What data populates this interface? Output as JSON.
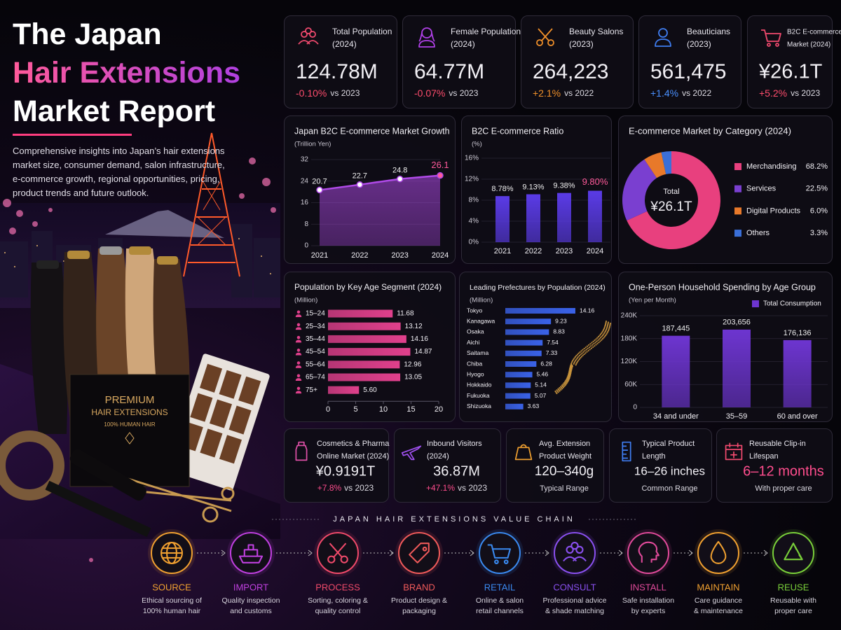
{
  "header": {
    "title_lines": [
      "The Japan",
      "Hair Extensions",
      "Market Report"
    ],
    "description": "Comprehensive insights into Japan’s hair extensions market size, consumer demand, salon infrastructure, e-commerce growth, regional opportunities, pricing, product trends and future outlook."
  },
  "illustration": {
    "box_lines": [
      "PREMIUM",
      "HAIR EXTENSIONS",
      "100% HUMAN HAIR"
    ]
  },
  "kpis": [
    {
      "label": [
        "Total Population",
        "(2024)"
      ],
      "value": "124.78M",
      "change": "-0.10%",
      "compare": "vs 2023"
    },
    {
      "label": [
        "Female Population",
        "(2024)"
      ],
      "value": "64.77M",
      "change": "-0.07%",
      "compare": "vs 2023"
    },
    {
      "label": [
        "Beauty Salons",
        "(2023)"
      ],
      "value": "264,223",
      "change": "+2.1%",
      "compare": "vs 2022"
    },
    {
      "label": [
        "Beauticians",
        "(2023)"
      ],
      "value": "561,475",
      "change": "+1.4%",
      "compare": "vs 2022"
    },
    {
      "label": [
        "B2C E-commerce",
        "Market (2024)"
      ],
      "value": "¥26.1T",
      "change": "+5.2%",
      "compare": "vs 2023"
    }
  ],
  "chart_data": [
    {
      "type": "line",
      "title": "Japan B2C E-commerce Market Growth",
      "subtitle": "(Trillion Yen)",
      "categories": [
        "2021",
        "2022",
        "2023",
        "2024"
      ],
      "values": [
        20.7,
        22.7,
        24.8,
        26.1
      ],
      "color": "#b04ae8",
      "ylim": [
        0,
        32
      ],
      "yticks": [
        0,
        8,
        16,
        24,
        32
      ]
    },
    {
      "type": "bar",
      "title": "B2C E-commerce Ratio",
      "subtitle": "(%)",
      "categories": [
        "2021",
        "2022",
        "2023",
        "2024"
      ],
      "values": [
        8.78,
        9.13,
        9.38,
        9.8
      ],
      "value_labels": [
        "8.78%",
        "9.13%",
        "9.38%",
        "9.80%"
      ],
      "color": "#5a3be6",
      "ylim": [
        0,
        16
      ],
      "yticks": [
        {
          "value": 0,
          "label": "0%"
        },
        {
          "value": 4,
          "label": "4%"
        },
        {
          "value": 8,
          "label": "8%"
        },
        {
          "value": 12,
          "label": "12%"
        },
        {
          "value": 16,
          "label": "16%"
        }
      ]
    },
    {
      "type": "donut",
      "title": "E-commerce Market by Category (2024)",
      "center_label": "Total",
      "center_value": "¥26.1T",
      "categories": [
        "Merchandising",
        "Services",
        "Digital Products",
        "Others"
      ],
      "values": [
        68.2,
        22.5,
        6,
        3.3
      ],
      "value_labels": [
        "68.2%",
        "22.5%",
        "6.0%",
        "3.3%"
      ],
      "colors": [
        "#e8407e",
        "#7a3fd0",
        "#e8792a",
        "#3a6fd8"
      ]
    },
    {
      "type": "hbar",
      "title": "Population by Key Age Segment (2024)",
      "subtitle": "(Million)",
      "categories": [
        "15–24",
        "25–34",
        "35–44",
        "45–54",
        "55–64",
        "65–74",
        "75+"
      ],
      "values": [
        11.68,
        13.12,
        14.16,
        14.87,
        12.96,
        13.05,
        5.6
      ],
      "value_labels": [
        "11.68",
        "13.12",
        "14.16",
        "14.87",
        "12.96",
        "13.05",
        "5.60"
      ],
      "color": "#e0408c",
      "xlim": [
        0,
        20
      ],
      "xticks": [
        0,
        5,
        10,
        15,
        20
      ]
    },
    {
      "type": "hbar",
      "title": "Leading Prefectures by Population (2024)",
      "subtitle": "(Million)",
      "categories": [
        "Tokyo",
        "Kanagawa",
        "Osaka",
        "Aichi",
        "Saitama",
        "Chiba",
        "Hyogo",
        "Hokkaido",
        "Fukuoka",
        "Shizuoka"
      ],
      "values": [
        14.16,
        9.23,
        8.83,
        7.54,
        7.33,
        6.28,
        5.46,
        5.14,
        5.07,
        3.63
      ],
      "color": "#3a62e8"
    },
    {
      "type": "bar",
      "title": "One-Person Household Spending by Age Group",
      "subtitle": "(Yen per Month)",
      "categories": [
        "34 and under",
        "35–59",
        "60 and over"
      ],
      "series": [
        {
          "name": "Total Consumption",
          "color": "#6d35d0",
          "values": [
            187445,
            203656,
            176136
          ],
          "value_labels": [
            "187,445",
            "203,656",
            "176,136"
          ]
        }
      ],
      "ylim": [
        0,
        240000
      ],
      "yticks": [
        0,
        {
          "value": 60000,
          "label": "60K"
        },
        {
          "value": 120000,
          "label": "120K"
        },
        {
          "value": 180000,
          "label": "180K"
        },
        {
          "value": 240000,
          "label": "240K"
        }
      ]
    }
  ],
  "kpis_bottom": [
    {
      "label": [
        "Cosmetics & Pharma",
        "Online Market (2024)"
      ],
      "value": "¥0.9191T",
      "change": "+7.8%",
      "compare": "vs 2023"
    },
    {
      "label": [
        "Inbound Visitors",
        "(2024)"
      ],
      "value": "36.87M",
      "change": "+47.1%",
      "compare": "vs 2023"
    },
    {
      "label": [
        "Avg. Extension",
        "Product Weight"
      ],
      "value": "120–340g",
      "note": "Typical Range"
    },
    {
      "label": [
        "Typical Product",
        "Length"
      ],
      "value": "16–26 inches",
      "note": "Common Range"
    },
    {
      "label": [
        "Reusable Clip-in",
        "Lifespan"
      ],
      "value": "6–12 months",
      "note": "With proper care"
    }
  ],
  "value_chain": {
    "title": "JAPAN HAIR EXTENSIONS VALUE CHAIN",
    "steps": [
      {
        "name": "SOURCE",
        "description": [
          "Ethical sourcing of",
          "100% human hair"
        ]
      },
      {
        "name": "IMPORT",
        "description": [
          "Quality inspection",
          "and customs"
        ]
      },
      {
        "name": "PROCESS",
        "description": [
          "Sorting, coloring &",
          "quality control"
        ]
      },
      {
        "name": "BRAND",
        "description": [
          "Product design &",
          "packaging"
        ]
      },
      {
        "name": "RETAIL",
        "description": [
          "Online & salon",
          "retail channels"
        ]
      },
      {
        "name": "CONSULT",
        "description": [
          "Professional advice",
          "& shade matching"
        ]
      },
      {
        "name": "INSTALL",
        "description": [
          "Safe installation",
          "by experts"
        ]
      },
      {
        "name": "MAINTAIN",
        "description": [
          "Care guidance",
          "& maintenance"
        ]
      },
      {
        "name": "REUSE",
        "description": [
          "Reusable with",
          "proper care"
        ]
      }
    ]
  }
}
